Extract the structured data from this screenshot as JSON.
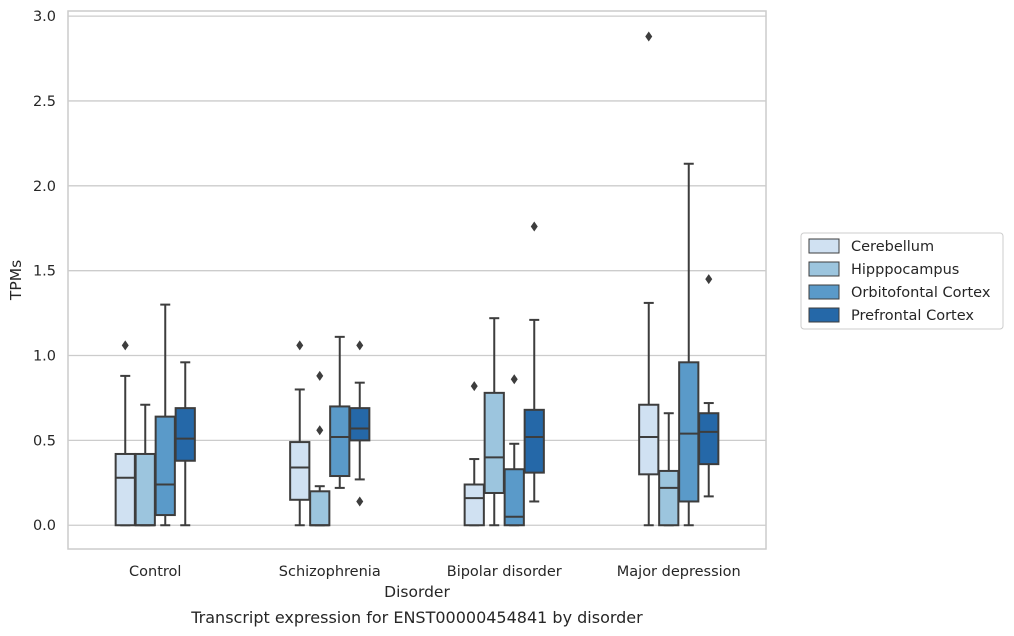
{
  "chart_data": {
    "type": "box",
    "caption": "Transcript expression for ENST00000454841 by disorder",
    "xlabel": "Disorder",
    "ylabel": "TPMs",
    "ylim": [
      -0.14,
      3.03
    ],
    "yticks": [
      "0.0",
      "0.5",
      "1.0",
      "1.5",
      "2.0",
      "2.5",
      "3.0"
    ],
    "categories": [
      "Control",
      "Schizophrenia",
      "Bipolar disorder",
      "Major depression"
    ],
    "grid": "horizontal",
    "legend_position": "right",
    "series": [
      {
        "name": "Cerebellum",
        "color": "#d0e1f2",
        "boxes": [
          {
            "min": 0.0,
            "q1": 0.0,
            "median": 0.28,
            "q3": 0.42,
            "max": 0.88,
            "outliers": [
              1.06
            ]
          },
          {
            "min": 0.0,
            "q1": 0.15,
            "median": 0.34,
            "q3": 0.49,
            "max": 0.8,
            "outliers": [
              1.06
            ]
          },
          {
            "min": 0.0,
            "q1": 0.0,
            "median": 0.16,
            "q3": 0.24,
            "max": 0.39,
            "outliers": [
              0.82
            ]
          },
          {
            "min": 0.0,
            "q1": 0.3,
            "median": 0.52,
            "q3": 0.71,
            "max": 1.31,
            "outliers": [
              2.88
            ]
          }
        ]
      },
      {
        "name": "Hipppocampus",
        "color": "#9cc5de",
        "boxes": [
          {
            "min": 0.0,
            "q1": 0.0,
            "median": 0.0,
            "q3": 0.42,
            "max": 0.71,
            "outliers": []
          },
          {
            "min": 0.0,
            "q1": 0.0,
            "median": 0.0,
            "q3": 0.2,
            "max": 0.23,
            "outliers": [
              0.88,
              0.56
            ]
          },
          {
            "min": 0.0,
            "q1": 0.19,
            "median": 0.4,
            "q3": 0.78,
            "max": 1.22,
            "outliers": []
          },
          {
            "min": 0.0,
            "q1": 0.0,
            "median": 0.22,
            "q3": 0.32,
            "max": 0.66,
            "outliers": []
          }
        ]
      },
      {
        "name": "Orbitofontal Cortex",
        "color": "#5a9ac9",
        "boxes": [
          {
            "min": 0.0,
            "q1": 0.06,
            "median": 0.24,
            "q3": 0.64,
            "max": 1.3,
            "outliers": []
          },
          {
            "min": 0.22,
            "q1": 0.29,
            "median": 0.52,
            "q3": 0.7,
            "max": 1.11,
            "outliers": []
          },
          {
            "min": 0.0,
            "q1": 0.0,
            "median": 0.05,
            "q3": 0.33,
            "max": 0.48,
            "outliers": [
              0.86
            ]
          },
          {
            "min": 0.0,
            "q1": 0.14,
            "median": 0.54,
            "q3": 0.96,
            "max": 2.13,
            "outliers": []
          }
        ]
      },
      {
        "name": "Prefrontal Cortex",
        "color": "#2568a8",
        "boxes": [
          {
            "min": 0.0,
            "q1": 0.38,
            "median": 0.51,
            "q3": 0.69,
            "max": 0.96,
            "outliers": []
          },
          {
            "min": 0.27,
            "q1": 0.5,
            "median": 0.57,
            "q3": 0.69,
            "max": 0.84,
            "outliers": [
              1.06,
              0.14
            ]
          },
          {
            "min": 0.14,
            "q1": 0.31,
            "median": 0.52,
            "q3": 0.68,
            "max": 1.21,
            "outliers": [
              1.76
            ]
          },
          {
            "min": 0.17,
            "q1": 0.36,
            "median": 0.55,
            "q3": 0.66,
            "max": 0.72,
            "outliers": [
              1.45
            ]
          }
        ]
      }
    ]
  }
}
